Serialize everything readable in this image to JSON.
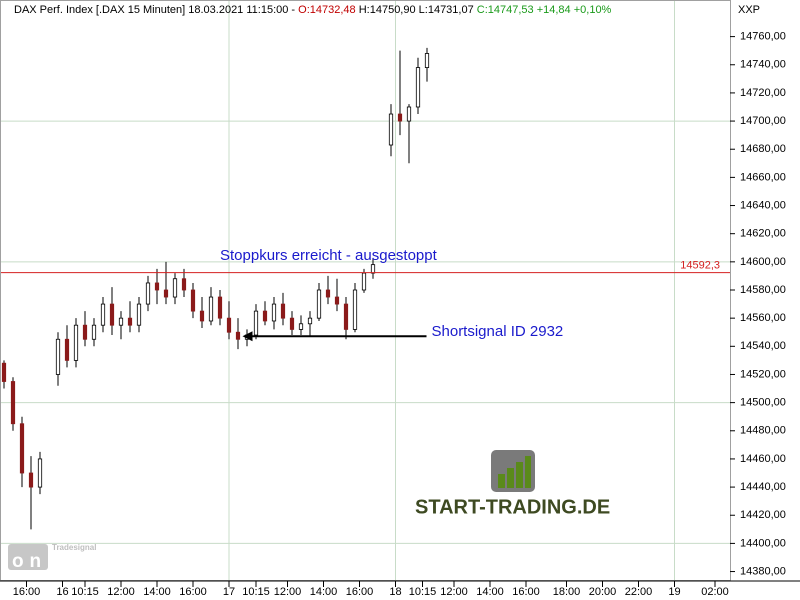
{
  "header": {
    "instrument": "DAX Perf. Index [.DAX  15 Minuten] 18.03.2021 11:15:00 -",
    "open": "O:14732,48",
    "high_low": "H:14750,90 L:14731,07",
    "close": "C:14747,53 +14,84 +0,10%"
  },
  "watermark": {
    "brand": "Tradesignal",
    "name": "onLine"
  },
  "logo": "START-TRADING.DE",
  "chart_data": {
    "type": "candlestick",
    "y_axis_label": "XXP",
    "xlim": [
      0,
      161
    ],
    "ylim": [
      14374,
      14786
    ],
    "up_color": "#ffffff",
    "down_color": "#8b1a1a",
    "grid": true,
    "ygrid": [
      14400,
      14500,
      14600,
      14700
    ],
    "xgrid": [
      50,
      87,
      149
    ],
    "yticks": [
      {
        "value": 14380,
        "label": "14380,00"
      },
      {
        "value": 14400,
        "label": "14400,00"
      },
      {
        "value": 14420,
        "label": "14420,00"
      },
      {
        "value": 14440,
        "label": "14440,00"
      },
      {
        "value": 14460,
        "label": "14460,00"
      },
      {
        "value": 14480,
        "label": "14480,00"
      },
      {
        "value": 14500,
        "label": "14500,00"
      },
      {
        "value": 14520,
        "label": "14520,00"
      },
      {
        "value": 14540,
        "label": "14540,00"
      },
      {
        "value": 14560,
        "label": "14560,00"
      },
      {
        "value": 14580,
        "label": "14580,00"
      },
      {
        "value": 14600,
        "label": "14600,00"
      },
      {
        "value": 14620,
        "label": "14620,00"
      },
      {
        "value": 14640,
        "label": "14640,00"
      },
      {
        "value": 14660,
        "label": "14660,00"
      },
      {
        "value": 14680,
        "label": "14680,00"
      },
      {
        "value": 14700,
        "label": "14700,00"
      },
      {
        "value": 14720,
        "label": "14720,00"
      },
      {
        "value": 14740,
        "label": "14740,00"
      },
      {
        "value": 14760,
        "label": "14760,00"
      }
    ],
    "xticks": [
      {
        "value": 5,
        "label": "16:00"
      },
      {
        "value": 13,
        "label": "16"
      },
      {
        "value": 18,
        "label": "10:15"
      },
      {
        "value": 26,
        "label": "12:00"
      },
      {
        "value": 34,
        "label": "14:00"
      },
      {
        "value": 42,
        "label": "16:00"
      },
      {
        "value": 50,
        "label": "17"
      },
      {
        "value": 56,
        "label": "10:15"
      },
      {
        "value": 63,
        "label": "12:00"
      },
      {
        "value": 71,
        "label": "14:00"
      },
      {
        "value": 79,
        "label": "16:00"
      },
      {
        "value": 87,
        "label": "18"
      },
      {
        "value": 93,
        "label": "10:15"
      },
      {
        "value": 100,
        "label": "12:00"
      },
      {
        "value": 108,
        "label": "14:00"
      },
      {
        "value": 116,
        "label": "16:00"
      },
      {
        "value": 125,
        "label": "18:00"
      },
      {
        "value": 133,
        "label": "20:00"
      },
      {
        "value": 141,
        "label": "22:00"
      },
      {
        "value": 149,
        "label": "19"
      },
      {
        "value": 158,
        "label": "02:00"
      }
    ],
    "x": [
      0,
      2,
      4,
      6,
      8,
      12,
      14,
      16,
      18,
      20,
      22,
      24,
      26,
      28,
      30,
      32,
      34,
      36,
      38,
      40,
      42,
      44,
      46,
      48,
      50,
      52,
      54,
      56,
      58,
      60,
      62,
      64,
      66,
      68,
      70,
      72,
      74,
      76,
      78,
      80,
      82,
      86,
      88,
      90,
      92,
      94
    ],
    "open": [
      14528,
      14515,
      14485,
      14450,
      14440,
      14520,
      14545,
      14530,
      14555,
      14545,
      14555,
      14570,
      14555,
      14560,
      14555,
      14570,
      14585,
      14580,
      14575,
      14588,
      14580,
      14565,
      14558,
      14575,
      14560,
      14550,
      14545,
      14548,
      14565,
      14558,
      14570,
      14560,
      14552,
      14556,
      14560,
      14580,
      14575,
      14570,
      14552,
      14580,
      14592,
      14683,
      14705,
      14700,
      14710,
      14738
    ],
    "high": [
      14530,
      14518,
      14490,
      14462,
      14465,
      14550,
      14555,
      14560,
      14565,
      14560,
      14575,
      14582,
      14565,
      14572,
      14575,
      14590,
      14595,
      14600,
      14592,
      14595,
      14585,
      14575,
      14582,
      14580,
      14572,
      14560,
      14552,
      14570,
      14572,
      14575,
      14578,
      14565,
      14562,
      14565,
      14585,
      14590,
      14588,
      14575,
      14585,
      14595,
      14602,
      14712,
      14750,
      14712,
      14745,
      14752
    ],
    "low": [
      14510,
      14480,
      14440,
      14410,
      14435,
      14512,
      14525,
      14525,
      14540,
      14540,
      14550,
      14548,
      14545,
      14550,
      14550,
      14565,
      14570,
      14570,
      14570,
      14575,
      14560,
      14553,
      14555,
      14555,
      14545,
      14538,
      14540,
      14545,
      14555,
      14552,
      14555,
      14548,
      14548,
      14547,
      14558,
      14570,
      14565,
      14545,
      14550,
      14578,
      14588,
      14675,
      14690,
      14670,
      14705,
      14728
    ],
    "close": [
      14515,
      14485,
      14450,
      14440,
      14460,
      14545,
      14530,
      14555,
      14545,
      14555,
      14570,
      14555,
      14560,
      14555,
      14570,
      14585,
      14580,
      14575,
      14588,
      14580,
      14565,
      14558,
      14575,
      14560,
      14550,
      14545,
      14548,
      14565,
      14558,
      14570,
      14560,
      14552,
      14556,
      14560,
      14580,
      14575,
      14570,
      14552,
      14580,
      14592,
      14598,
      14705,
      14700,
      14710,
      14738,
      14748
    ],
    "level": {
      "value": 14592.3,
      "value_label": "14592,3",
      "color": "#d42020"
    },
    "annotations": [
      {
        "text": "Stoppkurs erreicht - ausgestoppt",
        "x": 48,
        "y": 14604
      },
      {
        "text": "Shortsignal ID 2932",
        "x": 95,
        "y": 14550,
        "arrow_to": 53
      }
    ]
  }
}
